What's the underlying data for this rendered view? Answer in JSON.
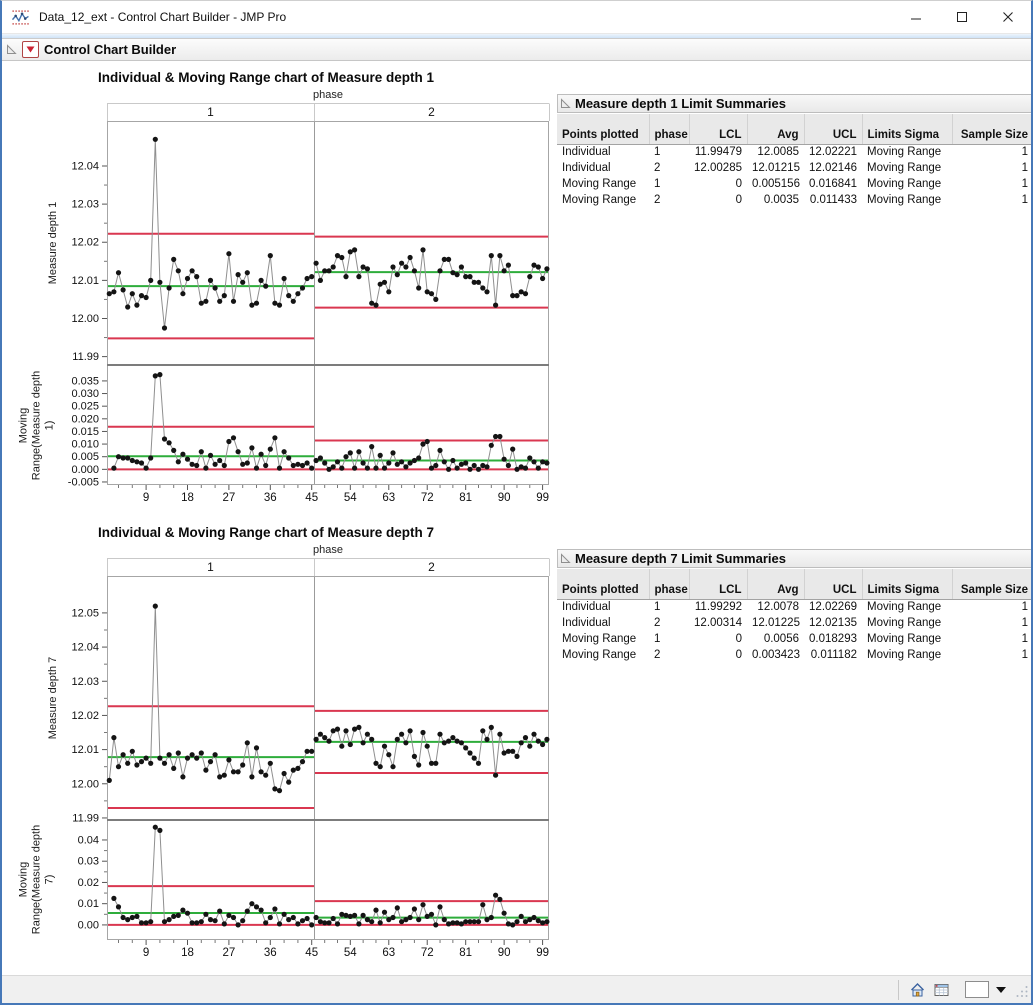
{
  "window_title": "Data_12_ext - Control Chart Builder - JMP Pro",
  "outline_title": "Control Chart Builder",
  "colors": {
    "center_line": "#2ead3b",
    "control_limit": "#da3750",
    "series_point": "#141414",
    "series_line": "#8f8f8f"
  },
  "sections": [
    {
      "chart_title": "Individual & Moving Range chart of Measure depth 1",
      "phase_label": "phase",
      "phases": [
        "1",
        "2"
      ],
      "y_label_individual": "Measure depth 1",
      "y_label_mr": "Moving Range(Measure depth 1)",
      "table": {
        "title": "Measure depth 1 Limit Summaries",
        "columns": [
          "Points plotted",
          "phase",
          "LCL",
          "Avg",
          "UCL",
          "Limits Sigma",
          "Sample Size"
        ],
        "rows": [
          [
            "Individual",
            "1",
            "11.99479",
            "12.0085",
            "12.02221",
            "Moving Range",
            "1"
          ],
          [
            "Individual",
            "2",
            "12.00285",
            "12.01215",
            "12.02146",
            "Moving Range",
            "1"
          ],
          [
            "Moving Range",
            "1",
            "0",
            "0.005156",
            "0.016841",
            "Moving Range",
            "1"
          ],
          [
            "Moving Range",
            "2",
            "0",
            "0.0035",
            "0.011433",
            "Moving Range",
            "1"
          ]
        ]
      }
    },
    {
      "chart_title": "Individual & Moving Range chart of Measure depth 7",
      "phase_label": "phase",
      "phases": [
        "1",
        "2"
      ],
      "y_label_individual": "Measure depth 7",
      "y_label_mr": "Moving Range(Measure depth 7)",
      "table": {
        "title": "Measure depth 7 Limit Summaries",
        "columns": [
          "Points plotted",
          "phase",
          "LCL",
          "Avg",
          "UCL",
          "Limits Sigma",
          "Sample Size"
        ],
        "rows": [
          [
            "Individual",
            "1",
            "11.99292",
            "12.0078",
            "12.02269",
            "Moving Range",
            "1"
          ],
          [
            "Individual",
            "2",
            "12.00314",
            "12.01225",
            "12.02135",
            "Moving Range",
            "1"
          ],
          [
            "Moving Range",
            "1",
            "0",
            "0.0056",
            "0.018293",
            "Moving Range",
            "1"
          ],
          [
            "Moving Range",
            "2",
            "0",
            "0.003423",
            "0.011182",
            "Moving Range",
            "1"
          ]
        ]
      }
    }
  ],
  "chart_data": [
    {
      "type": "line",
      "subtype": "individual-and-moving-range-control-chart",
      "title": "Individual & Moving Range chart of Measure depth 1",
      "xlabel_ticks": [
        9,
        18,
        27,
        36,
        45,
        54,
        63,
        72,
        81,
        90,
        99
      ],
      "phase_split_after": 45,
      "individual": {
        "values": [
          12.0065,
          12.007,
          12.012,
          12.0075,
          12.003,
          12.0065,
          12.0035,
          12.006,
          12.0055,
          12.01,
          12.047,
          12.0095,
          11.9975,
          12.008,
          12.0155,
          12.0125,
          12.0065,
          12.0105,
          12.0125,
          12.011,
          12.004,
          12.0045,
          12.01,
          12.008,
          12.0045,
          12.006,
          12.017,
          12.0045,
          12.0115,
          12.0095,
          12.012,
          12.0035,
          12.004,
          12.01,
          12.0085,
          12.0165,
          12.004,
          12.0035,
          12.0105,
          12.006,
          12.0045,
          12.0065,
          12.008,
          12.0105,
          12.011,
          12.0145,
          12.01,
          12.0125,
          12.0125,
          12.0135,
          12.0165,
          12.016,
          12.011,
          12.0175,
          12.018,
          12.011,
          12.0135,
          12.013,
          12.004,
          12.0035,
          12.009,
          12.0095,
          12.007,
          12.0135,
          12.0115,
          12.0145,
          12.0135,
          12.016,
          12.0125,
          12.008,
          12.018,
          12.007,
          12.0065,
          12.005,
          12.0125,
          12.0155,
          12.0155,
          12.012,
          12.0115,
          12.0135,
          12.011,
          12.011,
          12.0095,
          12.0095,
          12.008,
          12.007,
          12.0165,
          12.0035,
          12.0165,
          12.0125,
          12.014,
          12.006,
          12.006,
          12.007,
          12.0065,
          12.011,
          12.014,
          12.0135,
          12.0105,
          12.013
        ],
        "y_ticks": [
          11.99,
          12.0,
          12.01,
          12.02,
          12.03,
          12.04
        ],
        "y_tick_labels": [
          "11.99",
          "12.00",
          "12.01",
          "12.02",
          "12.03",
          "12.04"
        ],
        "ylim": [
          11.9878,
          12.0518
        ],
        "limits": [
          {
            "phase": "1",
            "lcl": 11.99479,
            "avg": 12.0085,
            "ucl": 12.02221
          },
          {
            "phase": "2",
            "lcl": 12.00285,
            "avg": 12.01215,
            "ucl": 12.02146
          }
        ]
      },
      "moving_range": {
        "derived": "absolute difference of consecutive Individual values, plotted from sample 2",
        "y_ticks": [
          -0.005,
          0.0,
          0.005,
          0.01,
          0.015,
          0.02,
          0.025,
          0.03,
          0.035
        ],
        "y_tick_labels": [
          "-0.005",
          "0.000",
          "0.005",
          "0.010",
          "0.015",
          "0.020",
          "0.025",
          "0.030",
          "0.035"
        ],
        "ylim": [
          -0.0062,
          0.0413
        ],
        "limits": [
          {
            "phase": "1",
            "lcl": 0,
            "avg": 0.005156,
            "ucl": 0.016841
          },
          {
            "phase": "2",
            "lcl": 0,
            "avg": 0.0035,
            "ucl": 0.011433
          }
        ]
      }
    },
    {
      "type": "line",
      "subtype": "individual-and-moving-range-control-chart",
      "title": "Individual & Moving Range chart of Measure depth 7",
      "xlabel_ticks": [
        9,
        18,
        27,
        36,
        45,
        54,
        63,
        72,
        81,
        90,
        99
      ],
      "phase_split_after": 45,
      "individual": {
        "values": [
          12.001,
          12.0135,
          12.005,
          12.0085,
          12.006,
          12.0095,
          12.0055,
          12.0065,
          12.0075,
          12.006,
          12.052,
          12.0075,
          12.006,
          12.0085,
          12.0045,
          12.009,
          12.002,
          12.0075,
          12.0085,
          12.0075,
          12.009,
          12.004,
          12.0065,
          12.0085,
          12.002,
          12.0025,
          12.007,
          12.0035,
          12.0035,
          12.0055,
          12.012,
          12.002,
          12.0105,
          12.0035,
          12.0025,
          12.006,
          11.9985,
          11.998,
          12.003,
          12.0005,
          12.004,
          12.0045,
          12.0065,
          12.0095,
          12.0095,
          12.013,
          12.0145,
          12.0135,
          12.0125,
          12.0155,
          12.016,
          12.011,
          12.0155,
          12.0115,
          12.016,
          12.0165,
          12.012,
          12.0145,
          12.013,
          12.006,
          12.005,
          12.011,
          12.0085,
          12.005,
          12.013,
          12.0145,
          12.012,
          12.0155,
          12.008,
          12.0055,
          12.015,
          12.011,
          12.006,
          12.006,
          12.0145,
          12.012,
          12.0125,
          12.0135,
          12.0125,
          12.012,
          12.0105,
          12.009,
          12.0075,
          12.006,
          12.0155,
          12.013,
          12.0165,
          12.0025,
          12.0145,
          12.009,
          12.0095,
          12.0095,
          12.008,
          12.012,
          12.0135,
          12.011,
          12.0145,
          12.0125,
          12.0115,
          12.013
        ],
        "y_ticks": [
          11.99,
          12.0,
          12.01,
          12.02,
          12.03,
          12.04,
          12.05
        ],
        "y_tick_labels": [
          "11.99",
          "12.00",
          "12.01",
          "12.02",
          "12.03",
          "12.04",
          "12.05"
        ],
        "ylim": [
          11.9894,
          12.0608
        ],
        "limits": [
          {
            "phase": "1",
            "lcl": 11.99292,
            "avg": 12.0078,
            "ucl": 12.02269
          },
          {
            "phase": "2",
            "lcl": 12.00314,
            "avg": 12.01225,
            "ucl": 12.02135
          }
        ]
      },
      "moving_range": {
        "derived": "absolute difference of consecutive Individual values, plotted from sample 2",
        "y_ticks": [
          0.0,
          0.01,
          0.02,
          0.03,
          0.04
        ],
        "y_tick_labels": [
          "0.00",
          "0.01",
          "0.02",
          "0.03",
          "0.04"
        ],
        "ylim": [
          -0.0071,
          0.0494
        ],
        "limits": [
          {
            "phase": "1",
            "lcl": 0,
            "avg": 0.0056,
            "ucl": 0.018293
          },
          {
            "phase": "2",
            "lcl": 0,
            "avg": 0.003423,
            "ucl": 0.011182
          }
        ]
      }
    }
  ],
  "statusbar": {
    "icons": [
      "home-icon",
      "data-table-icon",
      "zoom-box",
      "dropdown-caret",
      "resize-grip"
    ]
  }
}
